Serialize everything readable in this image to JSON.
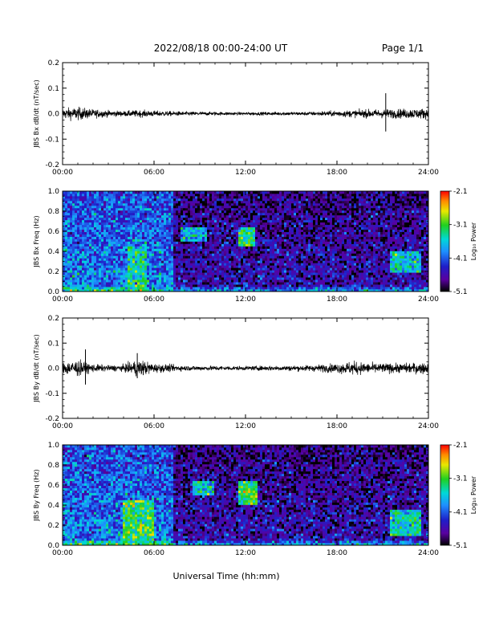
{
  "header": {
    "date_range": "2022/08/18  00:00-24:00 UT",
    "page": "Page 1/1"
  },
  "x_axis": {
    "label": "Universal Time (hh:mm)",
    "ticks": [
      "00:00",
      "06:00",
      "12:00",
      "18:00",
      "24:00"
    ]
  },
  "colors": {
    "line": "#000000",
    "spectrogram_background": "#1a1aa8"
  },
  "colorbar": {
    "label": "Log₁₀ Power",
    "ticks": [
      "-2.1",
      "-3.1",
      "-4.1",
      "-5.1"
    ]
  },
  "chart_data": [
    {
      "type": "line",
      "ylabel": "JBS Bx dB/dt (nT/sec)",
      "ylim": [
        -0.2,
        0.2
      ],
      "yticks": [
        "0.2",
        "0.1",
        "0.0",
        "-0.1",
        "-0.2"
      ],
      "xlim": [
        0,
        24
      ],
      "amplitude_profile": [
        {
          "t": 0,
          "a": 0.018
        },
        {
          "t": 1,
          "a": 0.022
        },
        {
          "t": 2,
          "a": 0.015
        },
        {
          "t": 3,
          "a": 0.011
        },
        {
          "t": 4,
          "a": 0.009
        },
        {
          "t": 5,
          "a": 0.012
        },
        {
          "t": 6,
          "a": 0.01
        },
        {
          "t": 8,
          "a": 0.007
        },
        {
          "t": 10,
          "a": 0.006
        },
        {
          "t": 12,
          "a": 0.005
        },
        {
          "t": 14,
          "a": 0.006
        },
        {
          "t": 16,
          "a": 0.006
        },
        {
          "t": 18,
          "a": 0.01
        },
        {
          "t": 20,
          "a": 0.014
        },
        {
          "t": 22,
          "a": 0.016
        },
        {
          "t": 24,
          "a": 0.018
        }
      ],
      "spikes": [
        {
          "t": 21.2,
          "min": -0.07,
          "max": 0.08
        }
      ]
    },
    {
      "type": "heatmap",
      "ylabel": "JBS Bx Freq (Hz)",
      "ylim": [
        0.0,
        1.0
      ],
      "yticks": [
        "1.0",
        "0.8",
        "0.6",
        "0.4",
        "0.2",
        "0.0"
      ],
      "xlim": [
        0,
        24
      ],
      "zlim": [
        -5.1,
        -2.1
      ],
      "quiet_interval": [
        7.2,
        24
      ],
      "enhanced_regions": [
        {
          "t0": 4.3,
          "t1": 5.5,
          "f0": 0.0,
          "f1": 0.45,
          "z": -3.4
        },
        {
          "t0": 11.5,
          "t1": 12.6,
          "f0": 0.45,
          "f1": 0.65,
          "z": -3.3
        },
        {
          "t0": 7.8,
          "t1": 9.5,
          "f0": 0.5,
          "f1": 0.65,
          "z": -3.7
        },
        {
          "t0": 21.5,
          "t1": 23.5,
          "f0": 0.2,
          "f1": 0.4,
          "z": -3.6
        }
      ]
    },
    {
      "type": "line",
      "ylabel": "JBS By dB/dt (nT/sec)",
      "ylim": [
        -0.2,
        0.2
      ],
      "yticks": [
        "0.2",
        "0.1",
        "0.0",
        "-0.1",
        "-0.2"
      ],
      "xlim": [
        0,
        24
      ],
      "amplitude_profile": [
        {
          "t": 0,
          "a": 0.022
        },
        {
          "t": 1,
          "a": 0.028
        },
        {
          "t": 2,
          "a": 0.014
        },
        {
          "t": 3,
          "a": 0.01
        },
        {
          "t": 4,
          "a": 0.012
        },
        {
          "t": 5,
          "a": 0.03
        },
        {
          "t": 6,
          "a": 0.016
        },
        {
          "t": 8,
          "a": 0.009
        },
        {
          "t": 10,
          "a": 0.008
        },
        {
          "t": 12,
          "a": 0.007
        },
        {
          "t": 14,
          "a": 0.009
        },
        {
          "t": 16,
          "a": 0.01
        },
        {
          "t": 18,
          "a": 0.016
        },
        {
          "t": 19,
          "a": 0.024
        },
        {
          "t": 20,
          "a": 0.018
        },
        {
          "t": 22,
          "a": 0.016
        },
        {
          "t": 24,
          "a": 0.02
        }
      ],
      "spikes": [
        {
          "t": 1.5,
          "min": -0.065,
          "max": 0.075
        },
        {
          "t": 4.9,
          "min": -0.04,
          "max": 0.06
        }
      ]
    },
    {
      "type": "heatmap",
      "ylabel": "JBS By Freq (Hz)",
      "ylim": [
        0.0,
        1.0
      ],
      "yticks": [
        "1.0",
        "0.8",
        "0.6",
        "0.4",
        "0.2",
        "0.0"
      ],
      "xlim": [
        0,
        24
      ],
      "zlim": [
        -5.1,
        -2.1
      ],
      "quiet_interval": [
        7.2,
        24
      ],
      "enhanced_regions": [
        {
          "t0": 4.0,
          "t1": 6.0,
          "f0": 0.0,
          "f1": 0.45,
          "z": -3.2
        },
        {
          "t0": 11.5,
          "t1": 12.8,
          "f0": 0.4,
          "f1": 0.65,
          "z": -3.2
        },
        {
          "t0": 8.5,
          "t1": 10.0,
          "f0": 0.5,
          "f1": 0.65,
          "z": -3.6
        },
        {
          "t0": 21.5,
          "t1": 23.5,
          "f0": 0.1,
          "f1": 0.35,
          "z": -3.5
        }
      ]
    }
  ]
}
